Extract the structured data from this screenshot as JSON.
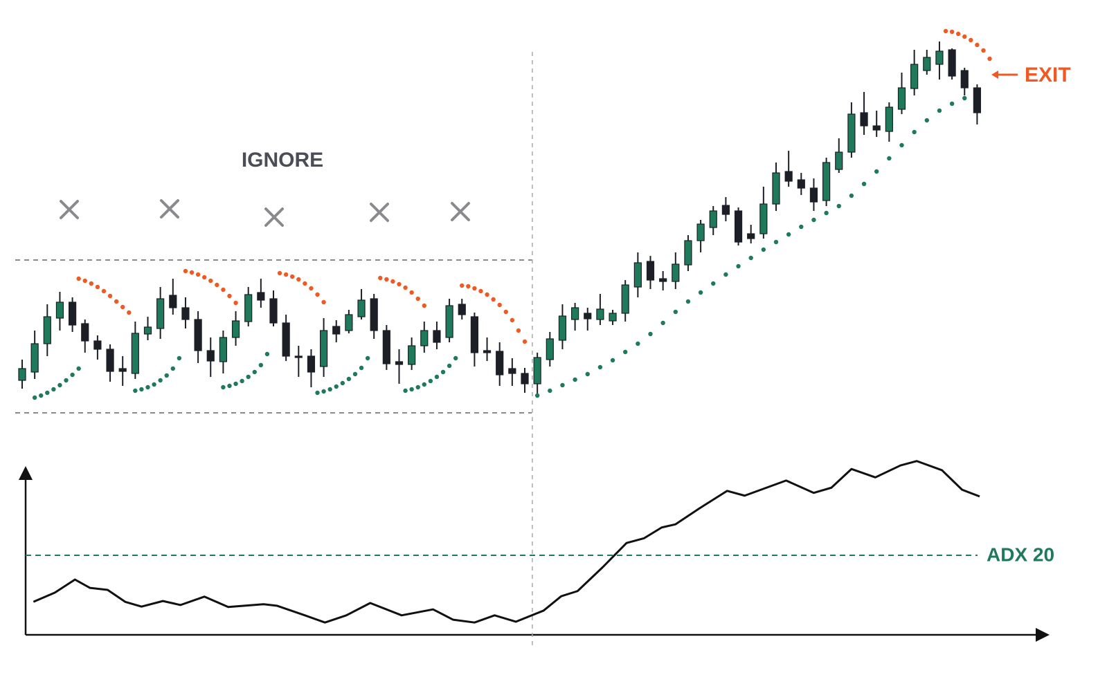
{
  "chart_data": {
    "type": "candlestick",
    "annotation": "IGNORE",
    "exit_label": "EXIT",
    "up_color": "#1e7a5a",
    "down_color": "#1c1f26",
    "open": [
      50,
      62,
      103,
      140,
      163,
      132,
      107,
      95,
      67,
      60,
      117,
      125,
      173,
      155,
      138,
      93,
      77,
      112,
      135,
      177,
      168,
      133,
      85,
      85,
      70,
      128,
      122,
      142,
      168,
      122,
      77,
      73,
      100,
      122,
      112,
      160,
      142,
      93,
      92,
      67,
      60,
      45,
      80,
      108,
      138,
      147,
      138,
      136,
      147,
      185,
      222,
      197,
      193,
      217,
      252,
      271,
      303,
      295,
      262,
      262,
      305,
      352,
      340,
      328,
      310,
      355,
      380,
      437,
      418,
      410,
      442,
      472,
      498,
      507,
      528,
      498,
      473
    ],
    "high": [
      80,
      122,
      160,
      178,
      170,
      138,
      115,
      102,
      85,
      135,
      142,
      185,
      197,
      170,
      150,
      112,
      122,
      150,
      185,
      197,
      180,
      145,
      100,
      95,
      140,
      137,
      152,
      182,
      175,
      130,
      95,
      112,
      135,
      135,
      168,
      168,
      148,
      112,
      105,
      82,
      68,
      90,
      120,
      160,
      162,
      155,
      175,
      152,
      195,
      235,
      230,
      208,
      235,
      260,
      282,
      302,
      315,
      300,
      275,
      330,
      365,
      382,
      350,
      342,
      372,
      400,
      452,
      467,
      440,
      452,
      495,
      528,
      528,
      540,
      530,
      502,
      478
    ],
    "low": [
      38,
      52,
      85,
      122,
      120,
      90,
      80,
      48,
      42,
      52,
      108,
      110,
      145,
      125,
      75,
      55,
      60,
      100,
      128,
      155,
      128,
      78,
      55,
      40,
      55,
      105,
      118,
      138,
      110,
      65,
      45,
      65,
      90,
      95,
      105,
      138,
      70,
      78,
      42,
      42,
      32,
      28,
      70,
      95,
      122,
      122,
      130,
      130,
      135,
      170,
      182,
      180,
      182,
      208,
      235,
      260,
      280,
      245,
      248,
      255,
      295,
      330,
      318,
      295,
      302,
      350,
      372,
      405,
      402,
      395,
      435,
      462,
      492,
      485,
      485,
      462,
      420
    ],
    "close": [
      67,
      103,
      142,
      163,
      130,
      107,
      95,
      63,
      63,
      118,
      127,
      168,
      155,
      138,
      93,
      78,
      112,
      136,
      174,
      166,
      133,
      85,
      83,
      62,
      122,
      117,
      145,
      166,
      122,
      74,
      73,
      100,
      122,
      105,
      158,
      145,
      90,
      90,
      58,
      60,
      45,
      83,
      110,
      143,
      155,
      139,
      153,
      147,
      188,
      220,
      195,
      193,
      218,
      252,
      276,
      295,
      290,
      250,
      255,
      305,
      350,
      338,
      328,
      308,
      365,
      380,
      435,
      418,
      412,
      445,
      473,
      507,
      517,
      526,
      490,
      473,
      437
    ],
    "range_lines": [
      224,
      3
    ],
    "divider_x": 40.6,
    "sar": [
      {
        "color": "#1e7a5a",
        "x": [
          1,
          1.5,
          2,
          2.5,
          3,
          3.5,
          4,
          4.5
        ],
        "values": [
          25,
          28,
          32,
          37,
          43,
          50,
          58,
          67
        ]
      },
      {
        "color": "#1e7a5a",
        "x": [
          9,
          9.5,
          10,
          10.5,
          11,
          11.5,
          12,
          12.5
        ],
        "values": [
          35,
          37,
          40,
          44,
          50,
          57,
          67,
          82
        ]
      },
      {
        "color": "#1e7a5a",
        "x": [
          16,
          16.5,
          17,
          17.5,
          18,
          18.5,
          19,
          19.5
        ],
        "values": [
          40,
          42,
          45,
          49,
          55,
          62,
          72,
          88
        ]
      },
      {
        "color": "#1e7a5a",
        "x": [
          23.5,
          24,
          24.5,
          25,
          25.5,
          26,
          26.5,
          27,
          27.5
        ],
        "values": [
          32,
          34,
          37,
          41,
          46,
          52,
          59,
          68,
          82
        ]
      },
      {
        "color": "#1e7a5a",
        "x": [
          30.5,
          31,
          31.5,
          32,
          32.5,
          33,
          33.5,
          34,
          34.5
        ],
        "values": [
          35,
          37,
          40,
          44,
          49,
          55,
          62,
          71,
          82
        ]
      },
      {
        "color": "#1e7a5a",
        "x": [
          41,
          42,
          43,
          44,
          45,
          46,
          47,
          48,
          49,
          50,
          51,
          52,
          53,
          54,
          55,
          56,
          57,
          58,
          59,
          60,
          61,
          62,
          63,
          64,
          65,
          66,
          67,
          68,
          69,
          70,
          71,
          72,
          73,
          74,
          75
        ],
        "values": [
          28,
          35,
          43,
          51,
          59,
          69,
          79,
          91,
          103,
          117,
          133,
          149,
          164,
          177,
          190,
          203,
          215,
          227,
          239,
          250,
          261,
          272,
          282,
          292,
          302,
          317,
          334,
          352,
          371,
          390,
          409,
          426,
          440,
          450,
          458
        ]
      },
      {
        "color": "#f05a22",
        "x": [
          4.5,
          5,
          5.5,
          6,
          6.5,
          7,
          7.5,
          8,
          8.5
        ],
        "values": [
          197,
          194,
          190,
          185,
          179,
          172,
          164,
          156,
          148
        ]
      },
      {
        "color": "#f05a22",
        "x": [
          13,
          13.5,
          14,
          14.5,
          15,
          15.5,
          16,
          16.5,
          17
        ],
        "values": [
          208,
          206,
          203,
          199,
          194,
          188,
          181,
          172,
          162
        ]
      },
      {
        "color": "#f05a22",
        "x": [
          20.5,
          21,
          21.5,
          22,
          22.5,
          23,
          23.5,
          24
        ],
        "values": [
          205,
          203,
          200,
          196,
          190,
          183,
          174,
          163
        ]
      },
      {
        "color": "#f05a22",
        "x": [
          28.5,
          29,
          29.5,
          30,
          30.5,
          31,
          31.5,
          32
        ],
        "values": [
          198,
          196,
          193,
          189,
          184,
          177,
          168,
          158
        ]
      },
      {
        "color": "#f05a22",
        "x": [
          35,
          35.5,
          36,
          36.5,
          37,
          37.5,
          38,
          38.5,
          39,
          39.5,
          40
        ],
        "values": [
          187,
          186,
          183,
          179,
          174,
          167,
          159,
          149,
          137,
          122,
          106
        ]
      },
      {
        "color": "#f05a22",
        "x": [
          73.5,
          74,
          74.5,
          75,
          75.5,
          76,
          76.5,
          77
        ],
        "values": [
          555,
          554,
          551,
          547,
          542,
          535,
          527,
          515
        ]
      }
    ],
    "adx": {
      "color": "#111111",
      "x": [
        0.9,
        2.6,
        4.2,
        5.4,
        6.8,
        8.2,
        9.5,
        11.2,
        12.6,
        14.5,
        16.4,
        19.2,
        20.3,
        22.5,
        24.1,
        25.8,
        27.7,
        30.2,
        32.7,
        34.3,
        36.0,
        37.6,
        39.3,
        41.5,
        42.9,
        44.2,
        46.2,
        48.1,
        49.5,
        50.9,
        52.0,
        53.9,
        56.1,
        57.5,
        60.8,
        63.0,
        64.4,
        66.0,
        67.9,
        69.9,
        71.2,
        73.2,
        74.8,
        76.2
      ],
      "values": [
        8.3,
        10.6,
        13.9,
        11.8,
        11.3,
        8.3,
        7.1,
        8.5,
        7.5,
        9.6,
        7.0,
        7.7,
        7.3,
        4.9,
        3.1,
        4.9,
        8.0,
        4.9,
        6.4,
        3.8,
        3.1,
        4.9,
        3.3,
        6.1,
        9.7,
        11.0,
        17.0,
        23.1,
        24.3,
        27.0,
        27.8,
        31.8,
        36.2,
        35.0,
        38.8,
        35.7,
        37.0,
        41.7,
        39.6,
        42.6,
        43.7,
        41.4,
        36.5,
        34.8
      ]
    },
    "threshold": {
      "value": 20,
      "label": "ADX 20",
      "color": "#1e7a5a"
    }
  }
}
